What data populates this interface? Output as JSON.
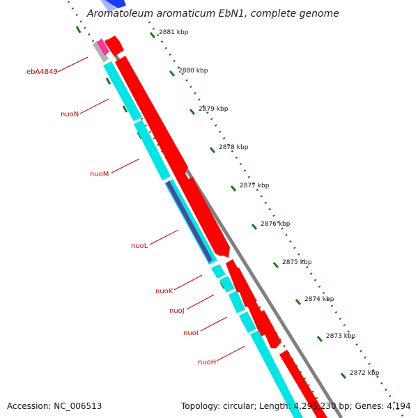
{
  "title": "Aromatoleum aromaticum EbN1, complete genome",
  "footer": {
    "accession": "Accession: NC_006513",
    "summary": "Topology: circular; Length: 4,296,230 bp; Genes: 4,194"
  },
  "ticks": [
    {
      "label": "2881 kbp"
    },
    {
      "label": "2880 kbp"
    },
    {
      "label": "2879 kbp"
    },
    {
      "label": "2878 kbp"
    },
    {
      "label": "2877 kbp"
    },
    {
      "label": "2876 kbp"
    },
    {
      "label": "2875 kbp"
    },
    {
      "label": "2874 kbp"
    },
    {
      "label": "2873 kbp"
    },
    {
      "label": "2872 kbp"
    }
  ],
  "genes": [
    {
      "label": "ebA4849"
    },
    {
      "label": "nuoN"
    },
    {
      "label": "nuoM"
    },
    {
      "label": "nuoL"
    },
    {
      "label": "nuoK"
    },
    {
      "label": "nuoJ"
    },
    {
      "label": "nuoI"
    },
    {
      "label": "nuoH"
    }
  ],
  "colors": {
    "cds": "#ff0000",
    "gene": "#00e5e5",
    "backbone": "#808080",
    "tick": "#1a7a1a",
    "label": "#cc0000",
    "rrna": "#ff3399",
    "misc": "#4b4b9c",
    "blue": "#1a3cff",
    "light_blue": "#8c9cff"
  }
}
